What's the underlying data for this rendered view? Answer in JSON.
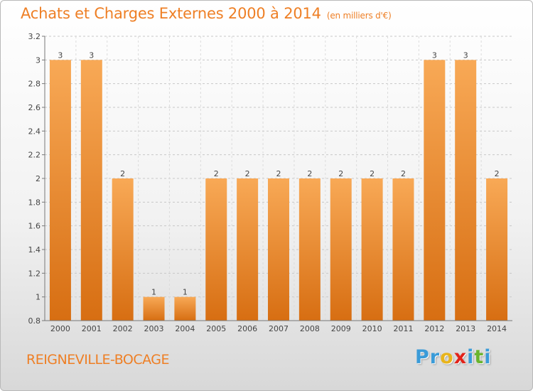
{
  "title": "Achats et Charges Externes 2000 à 2014",
  "subtitle": "(en milliers d'€)",
  "commune": "REIGNEVILLE-BOCAGE",
  "logo": {
    "letters": [
      "P",
      "r",
      "o",
      "x",
      "i",
      "t",
      "i"
    ],
    "colors": [
      "#3a9bd8",
      "#3a9bd8",
      "#e8b41c",
      "#e2231a",
      "#3a9bd8",
      "#6ab42d",
      "#3a9bd8"
    ]
  },
  "chart_data": {
    "type": "bar",
    "categories": [
      "2000",
      "2001",
      "2002",
      "2003",
      "2004",
      "2005",
      "2006",
      "2007",
      "2008",
      "2009",
      "2010",
      "2011",
      "2012",
      "2013",
      "2014"
    ],
    "values": [
      3,
      3,
      2,
      1,
      1,
      2,
      2,
      2,
      2,
      2,
      2,
      2,
      3,
      3,
      2
    ],
    "data_labels": [
      "3",
      "3",
      "2",
      "1",
      "1",
      "2",
      "2",
      "2",
      "2",
      "2",
      "2",
      "2",
      "3",
      "3",
      "2"
    ],
    "yticks": [
      0.8,
      1,
      1.2,
      1.4,
      1.6,
      1.8,
      2,
      2.2,
      2.4,
      2.6,
      2.8,
      3,
      3.2
    ],
    "ytick_labels": [
      "0.8",
      "1",
      "1.2",
      "1.4",
      "1.6",
      "1.8",
      "2",
      "2.2",
      "2.4",
      "2.6",
      "2.8",
      "3",
      "3.2"
    ],
    "ylim": [
      0.8,
      3.2
    ],
    "grid": "horizontal-dashed",
    "bar_color_top": "#f8a956",
    "bar_color_bottom": "#d76e12"
  }
}
